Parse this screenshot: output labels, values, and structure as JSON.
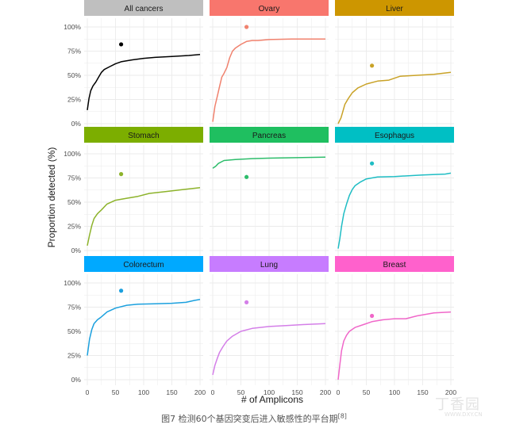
{
  "caption": {
    "text": "图7 检测60个基因突变后进入敏感性的平台期",
    "ref": "[8]"
  },
  "watermark": {
    "text": "丁香园",
    "url": "WWW.DXY.CN"
  },
  "colors": {
    "strip_text": "#1a1a1a",
    "panel_bg": "#ffffff",
    "grid": "#ebebeb",
    "axis_text": "#4d4d4d"
  },
  "chart_data": {
    "type": "line",
    "layout": "facet-grid 3x3",
    "xlabel": "# of Amplicons",
    "ylabel": "Proportion detected (%)",
    "xlim": [
      0,
      200
    ],
    "ylim": [
      0,
      1
    ],
    "xticks": [
      0,
      50,
      100,
      150,
      200
    ],
    "yticks": [
      0,
      0.25,
      0.5,
      0.75,
      1.0
    ],
    "ytick_labels": [
      "0%",
      "25%",
      "50%",
      "75%",
      "100%"
    ],
    "grid": true,
    "panels": [
      {
        "name": "All cancers",
        "color": "#000000",
        "strip_color": "#bfbfbf",
        "marker": {
          "x": 60,
          "y": 0.82
        },
        "line": [
          [
            0,
            0.14
          ],
          [
            3,
            0.26
          ],
          [
            6,
            0.34
          ],
          [
            10,
            0.39
          ],
          [
            15,
            0.43
          ],
          [
            20,
            0.48
          ],
          [
            25,
            0.53
          ],
          [
            30,
            0.56
          ],
          [
            40,
            0.59
          ],
          [
            50,
            0.62
          ],
          [
            60,
            0.64
          ],
          [
            80,
            0.66
          ],
          [
            100,
            0.675
          ],
          [
            120,
            0.685
          ],
          [
            150,
            0.695
          ],
          [
            180,
            0.705
          ],
          [
            200,
            0.715
          ]
        ]
      },
      {
        "name": "Ovary",
        "color": "#f0826e",
        "strip_color": "#f8766d",
        "marker": {
          "x": 60,
          "y": 1.0
        },
        "line": [
          [
            0,
            0.02
          ],
          [
            4,
            0.18
          ],
          [
            8,
            0.28
          ],
          [
            12,
            0.38
          ],
          [
            16,
            0.48
          ],
          [
            20,
            0.52
          ],
          [
            25,
            0.58
          ],
          [
            30,
            0.68
          ],
          [
            35,
            0.75
          ],
          [
            40,
            0.78
          ],
          [
            50,
            0.82
          ],
          [
            60,
            0.85
          ],
          [
            70,
            0.86
          ],
          [
            80,
            0.86
          ],
          [
            100,
            0.87
          ],
          [
            140,
            0.875
          ],
          [
            200,
            0.875
          ]
        ]
      },
      {
        "name": "Liver",
        "color": "#c9a227",
        "strip_color": "#cd9600",
        "marker": {
          "x": 60,
          "y": 0.6
        },
        "line": [
          [
            0,
            0.0
          ],
          [
            5,
            0.06
          ],
          [
            8,
            0.12
          ],
          [
            12,
            0.2
          ],
          [
            18,
            0.26
          ],
          [
            25,
            0.32
          ],
          [
            35,
            0.37
          ],
          [
            50,
            0.41
          ],
          [
            70,
            0.44
          ],
          [
            90,
            0.45
          ],
          [
            110,
            0.49
          ],
          [
            140,
            0.5
          ],
          [
            170,
            0.51
          ],
          [
            200,
            0.53
          ]
        ]
      },
      {
        "name": "Stomach",
        "color": "#8db32b",
        "strip_color": "#7cae00",
        "marker": {
          "x": 60,
          "y": 0.79
        },
        "line": [
          [
            0,
            0.05
          ],
          [
            4,
            0.16
          ],
          [
            8,
            0.26
          ],
          [
            12,
            0.33
          ],
          [
            18,
            0.38
          ],
          [
            25,
            0.42
          ],
          [
            35,
            0.48
          ],
          [
            50,
            0.52
          ],
          [
            70,
            0.54
          ],
          [
            90,
            0.56
          ],
          [
            110,
            0.59
          ],
          [
            140,
            0.61
          ],
          [
            170,
            0.63
          ],
          [
            200,
            0.65
          ]
        ]
      },
      {
        "name": "Pancreas",
        "color": "#2dbd6b",
        "strip_color": "#1fbf60",
        "marker": {
          "x": 60,
          "y": 0.76
        },
        "line": [
          [
            0,
            0.85
          ],
          [
            5,
            0.87
          ],
          [
            10,
            0.9
          ],
          [
            20,
            0.93
          ],
          [
            40,
            0.94
          ],
          [
            70,
            0.95
          ],
          [
            100,
            0.955
          ],
          [
            150,
            0.96
          ],
          [
            200,
            0.965
          ]
        ]
      },
      {
        "name": "Esophagus",
        "color": "#1fbdc4",
        "strip_color": "#00bfc4",
        "marker": {
          "x": 60,
          "y": 0.9
        },
        "line": [
          [
            0,
            0.02
          ],
          [
            3,
            0.12
          ],
          [
            6,
            0.25
          ],
          [
            10,
            0.38
          ],
          [
            15,
            0.48
          ],
          [
            20,
            0.57
          ],
          [
            25,
            0.63
          ],
          [
            30,
            0.67
          ],
          [
            40,
            0.71
          ],
          [
            50,
            0.74
          ],
          [
            70,
            0.76
          ],
          [
            100,
            0.765
          ],
          [
            150,
            0.78
          ],
          [
            190,
            0.79
          ],
          [
            200,
            0.8
          ]
        ]
      },
      {
        "name": "Colorectum",
        "color": "#1ba0de",
        "strip_color": "#00a9ff",
        "marker": {
          "x": 60,
          "y": 0.92
        },
        "line": [
          [
            0,
            0.25
          ],
          [
            4,
            0.42
          ],
          [
            8,
            0.52
          ],
          [
            12,
            0.58
          ],
          [
            18,
            0.62
          ],
          [
            25,
            0.65
          ],
          [
            35,
            0.7
          ],
          [
            50,
            0.74
          ],
          [
            70,
            0.77
          ],
          [
            90,
            0.78
          ],
          [
            120,
            0.785
          ],
          [
            150,
            0.79
          ],
          [
            175,
            0.8
          ],
          [
            190,
            0.82
          ],
          [
            200,
            0.83
          ]
        ]
      },
      {
        "name": "Lung",
        "color": "#d47fe8",
        "strip_color": "#c77cff",
        "marker": {
          "x": 60,
          "y": 0.8
        },
        "line": [
          [
            0,
            0.05
          ],
          [
            4,
            0.15
          ],
          [
            8,
            0.22
          ],
          [
            12,
            0.28
          ],
          [
            18,
            0.34
          ],
          [
            25,
            0.4
          ],
          [
            35,
            0.45
          ],
          [
            50,
            0.5
          ],
          [
            70,
            0.53
          ],
          [
            100,
            0.55
          ],
          [
            130,
            0.56
          ],
          [
            160,
            0.57
          ],
          [
            200,
            0.58
          ]
        ]
      },
      {
        "name": "Breast",
        "color": "#f067c9",
        "strip_color": "#ff61cc",
        "marker": {
          "x": 60,
          "y": 0.66
        },
        "line": [
          [
            0,
            0.0
          ],
          [
            3,
            0.15
          ],
          [
            6,
            0.3
          ],
          [
            10,
            0.4
          ],
          [
            15,
            0.46
          ],
          [
            20,
            0.5
          ],
          [
            30,
            0.54
          ],
          [
            45,
            0.57
          ],
          [
            60,
            0.6
          ],
          [
            80,
            0.62
          ],
          [
            100,
            0.63
          ],
          [
            120,
            0.63
          ],
          [
            140,
            0.66
          ],
          [
            170,
            0.69
          ],
          [
            200,
            0.7
          ]
        ]
      }
    ]
  }
}
